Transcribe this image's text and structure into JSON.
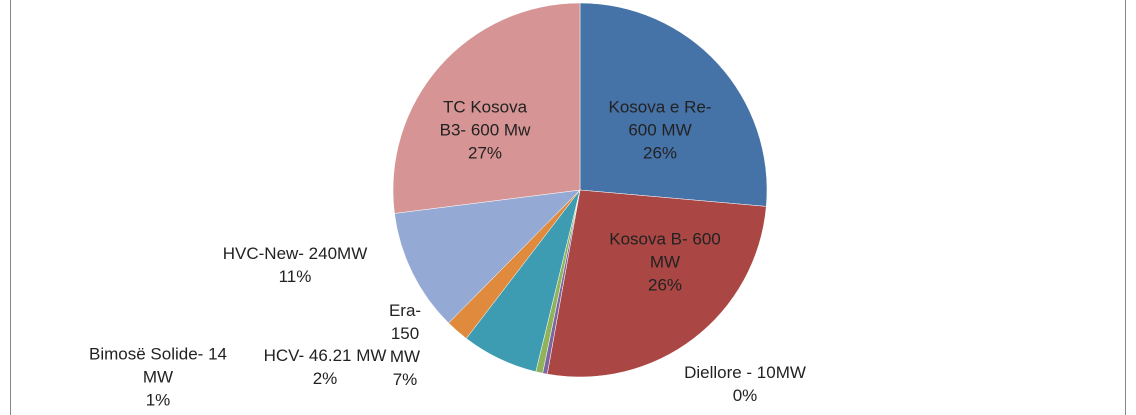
{
  "chart_data": {
    "type": "pie",
    "categories": [
      "Kosova e Re- 600 MW",
      "Kosova B- 600 MW",
      "Diellore - 10MW",
      "Bimosë Solide- 14 MW",
      "Era- 150 MW",
      "HCV- 46.21 MW",
      "HVC-New- 240MW",
      "TC Kosova B3- 600 Mw"
    ],
    "values": [
      26.4,
      26.4,
      0.4,
      0.6,
      6.6,
      2,
      10.6,
      27.0
    ],
    "value_labels": [
      "26%",
      "26%",
      "0%",
      "1%",
      "7%",
      "2%",
      "11%",
      "27%"
    ],
    "colors": [
      "#4572a7",
      "#aa4643",
      "#7d65a0",
      "#8fb35a",
      "#3d9bb2",
      "#df8a3c",
      "#94a9d3",
      "#d69594"
    ]
  }
}
